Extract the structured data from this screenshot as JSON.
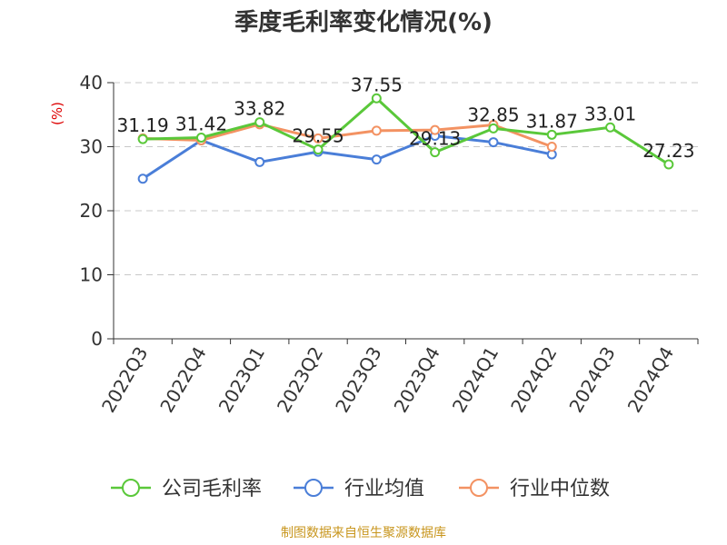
{
  "chart_data": {
    "type": "line",
    "title": "季度毛利率变化情况(%)",
    "ylabel": "(%)",
    "categories": [
      "2022Q3",
      "2022Q4",
      "2023Q1",
      "2023Q2",
      "2023Q3",
      "2023Q4",
      "2024Q1",
      "2024Q2",
      "2024Q3",
      "2024Q4"
    ],
    "ylim": [
      0,
      40
    ],
    "yticks": [
      0,
      10,
      20,
      30,
      40
    ],
    "grid": true,
    "legend_position": "bottom",
    "series": [
      {
        "name": "公司毛利率",
        "color": "#5ac83a",
        "values": [
          31.19,
          31.42,
          33.82,
          29.55,
          37.55,
          29.13,
          32.85,
          31.87,
          33.01,
          27.23
        ],
        "labels": [
          "31.19",
          "31.42",
          "33.82",
          "29.55",
          "37.55",
          "29.13",
          "32.85",
          "31.87",
          "33.01",
          "27.23"
        ]
      },
      {
        "name": "行业均值",
        "color": "#4a7ed8",
        "values": [
          25.0,
          31.0,
          27.6,
          29.2,
          28.0,
          31.7,
          30.7,
          28.8,
          null,
          null
        ]
      },
      {
        "name": "行业中位数",
        "color": "#f39262",
        "values": [
          31.3,
          31.0,
          33.5,
          31.3,
          32.5,
          32.6,
          33.4,
          30.0,
          null,
          null
        ]
      }
    ]
  },
  "source": "制图数据来自恒生聚源数据库"
}
